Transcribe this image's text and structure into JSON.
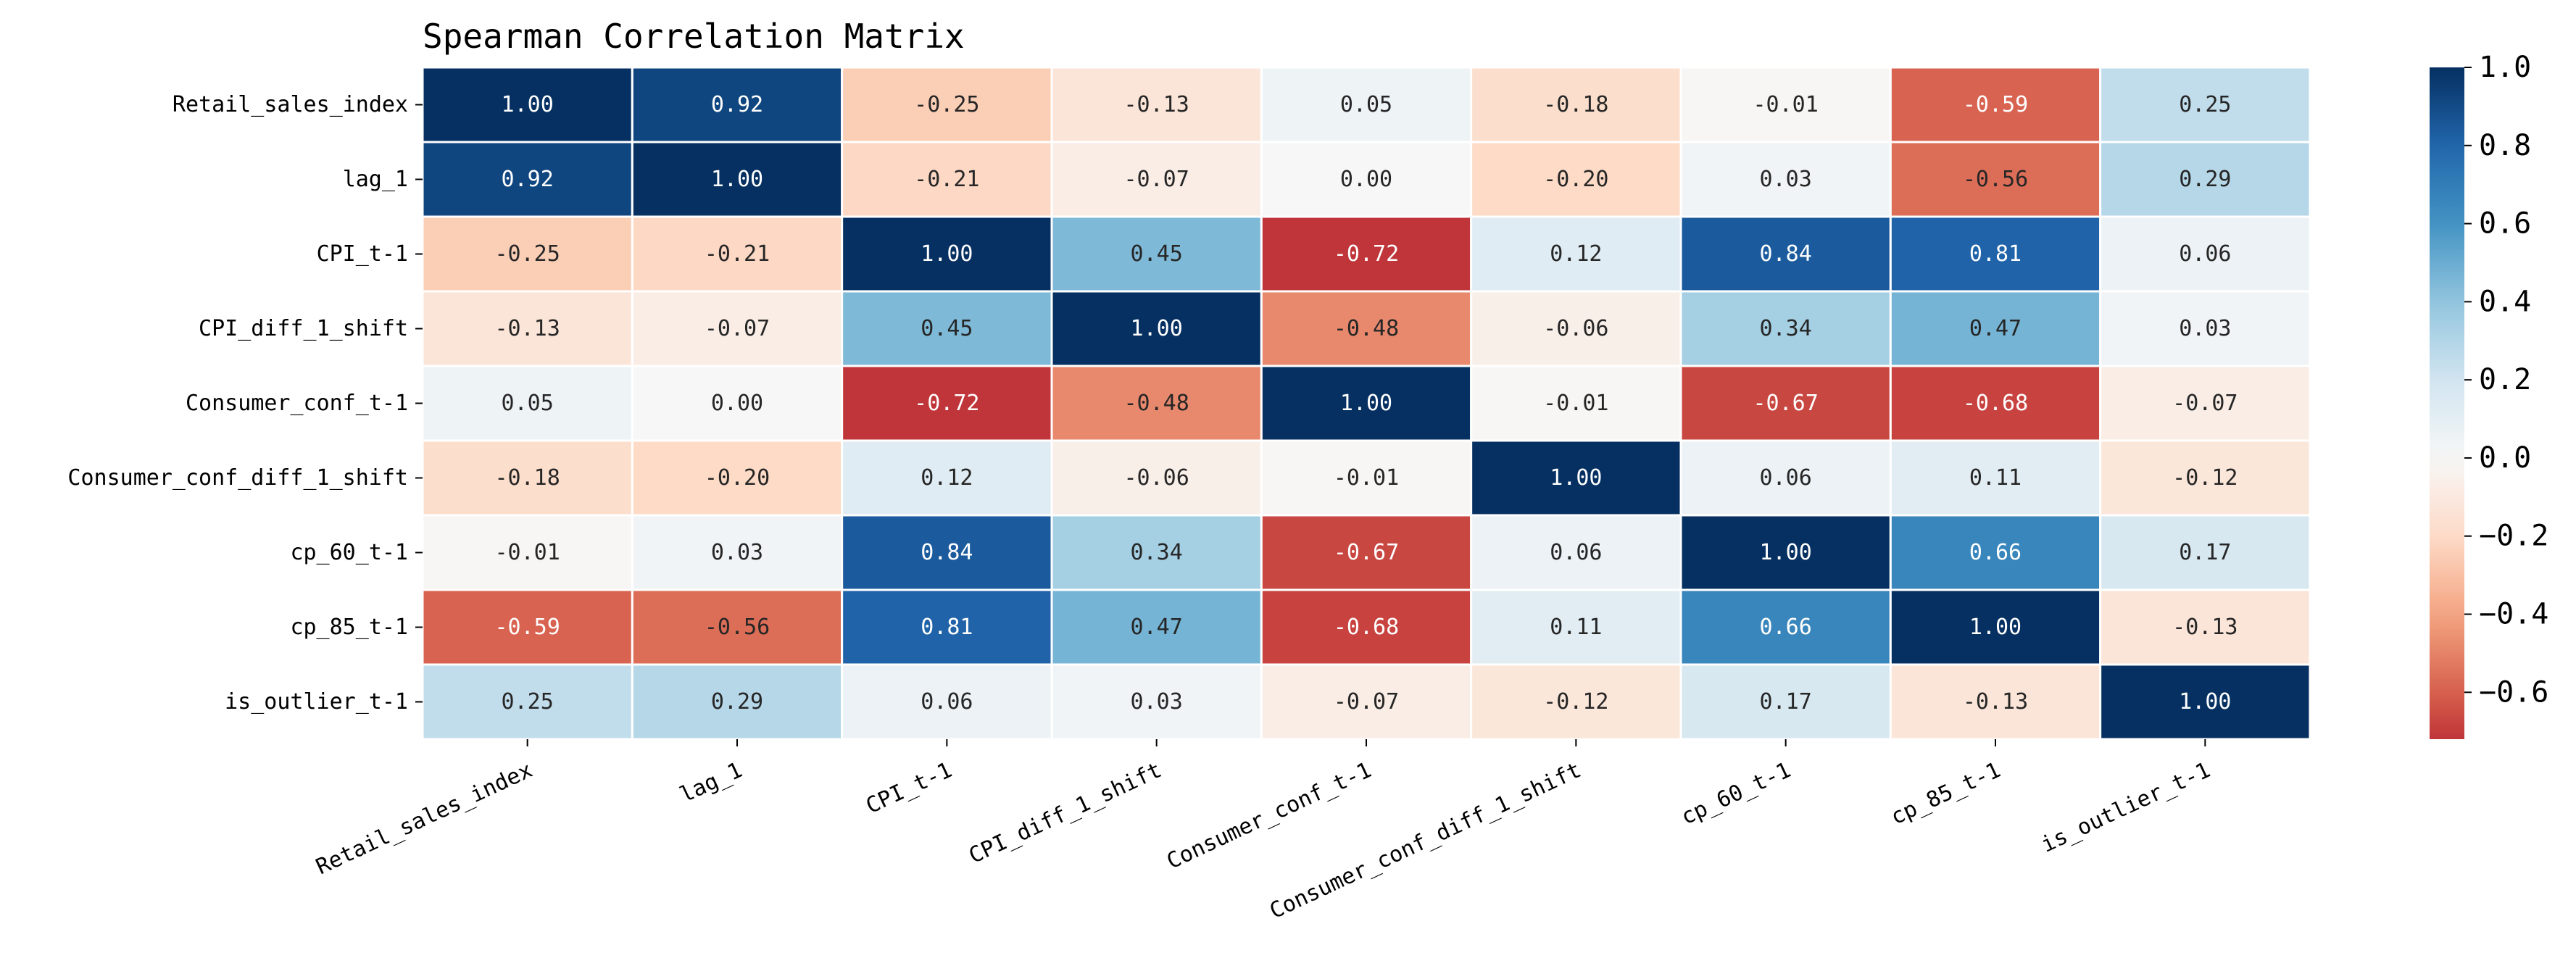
{
  "chart_data": {
    "type": "heatmap",
    "title": "Spearman Correlation Matrix",
    "xlabel": "",
    "ylabel": "",
    "variables": [
      "Retail_sales_index",
      "lag_1",
      "CPI_t-1",
      "CPI_diff_1_shift",
      "Consumer_conf_t-1",
      "Consumer_conf_diff_1_shift",
      "cp_60_t-1",
      "cp_85_t-1",
      "is_outlier_t-1"
    ],
    "matrix": [
      [
        1.0,
        0.92,
        -0.25,
        -0.13,
        0.05,
        -0.18,
        -0.01,
        -0.59,
        0.25
      ],
      [
        0.92,
        1.0,
        -0.21,
        -0.07,
        -0.0,
        -0.2,
        0.03,
        -0.56,
        0.29
      ],
      [
        -0.25,
        -0.21,
        1.0,
        0.45,
        -0.72,
        0.12,
        0.84,
        0.81,
        0.06
      ],
      [
        -0.13,
        -0.07,
        0.45,
        1.0,
        -0.48,
        -0.06,
        0.34,
        0.47,
        0.03
      ],
      [
        0.05,
        -0.0,
        -0.72,
        -0.48,
        1.0,
        -0.01,
        -0.67,
        -0.68,
        -0.07
      ],
      [
        -0.18,
        -0.2,
        0.12,
        -0.06,
        -0.01,
        1.0,
        0.06,
        0.11,
        -0.12
      ],
      [
        -0.01,
        0.03,
        0.84,
        0.34,
        -0.67,
        0.06,
        1.0,
        0.66,
        0.17
      ],
      [
        -0.59,
        -0.56,
        0.81,
        0.47,
        -0.68,
        0.11,
        0.66,
        1.0,
        -0.13
      ],
      [
        0.25,
        0.29,
        0.06,
        0.03,
        -0.07,
        -0.12,
        0.17,
        -0.13,
        1.0
      ]
    ],
    "value_format": "2 decimals",
    "colormap": "RdBu",
    "vmin": -0.72,
    "vmax": 1.0,
    "colorbar": {
      "ticks": [
        1.0,
        0.8,
        0.6,
        0.4,
        0.2,
        0.0,
        -0.2,
        -0.4,
        -0.6
      ],
      "tick_labels": [
        "1.0",
        "0.8",
        "0.6",
        "0.4",
        "0.2",
        "0.0",
        "−0.2",
        "−0.4",
        "−0.6"
      ]
    },
    "grid": false,
    "cell_borders": "white",
    "colors": {
      "low": "#c0252f",
      "mid": "#f6f6f6",
      "high": "#08306b"
    }
  }
}
